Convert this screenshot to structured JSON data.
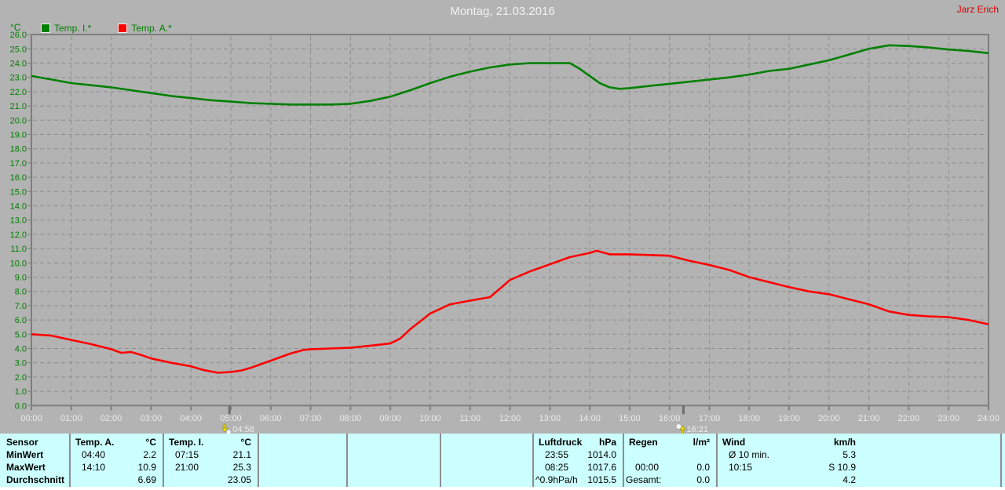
{
  "meta": {
    "title": "Montag, 21.03.2016",
    "user": "Jarz Erich"
  },
  "legend": {
    "unit": "°C",
    "items": [
      {
        "label": "Temp. I.*",
        "color": "#008000"
      },
      {
        "label": "Temp. A.*",
        "color": "#ff0000"
      }
    ]
  },
  "chart_data": {
    "type": "line",
    "title": "Montag, 21.03.2016",
    "xlabel": "",
    "ylabel": "°C",
    "ylim": [
      0,
      26
    ],
    "y_tick_step": 1,
    "grid": true,
    "legend_position": "top-left",
    "x_ticks": [
      "00:00",
      "01:00",
      "02:00",
      "03:00",
      "04:00",
      "05:00",
      "06:00",
      "07:00",
      "08:00",
      "09:00",
      "10:00",
      "11:00",
      "12:00",
      "13:00",
      "14:00",
      "15:00",
      "16:00",
      "17:00",
      "18:00",
      "19:00",
      "20:00",
      "21:00",
      "22:00",
      "23:00",
      "24:00"
    ],
    "series": [
      {
        "name": "Temp. I.*",
        "color": "#008000",
        "points": [
          [
            0,
            23.1
          ],
          [
            0.5,
            22.85
          ],
          [
            1,
            22.6
          ],
          [
            1.5,
            22.45
          ],
          [
            2,
            22.3
          ],
          [
            2.5,
            22.1
          ],
          [
            3,
            21.9
          ],
          [
            3.5,
            21.7
          ],
          [
            4,
            21.55
          ],
          [
            4.5,
            21.4
          ],
          [
            5,
            21.3
          ],
          [
            5.5,
            21.2
          ],
          [
            6,
            21.15
          ],
          [
            6.5,
            21.1
          ],
          [
            7,
            21.1
          ],
          [
            7.5,
            21.1
          ],
          [
            8,
            21.15
          ],
          [
            8.5,
            21.35
          ],
          [
            9,
            21.65
          ],
          [
            9.5,
            22.1
          ],
          [
            10,
            22.6
          ],
          [
            10.5,
            23.05
          ],
          [
            11,
            23.4
          ],
          [
            11.5,
            23.7
          ],
          [
            12,
            23.9
          ],
          [
            12.5,
            24.0
          ],
          [
            13,
            24.0
          ],
          [
            13.5,
            24.0
          ],
          [
            13.75,
            23.6
          ],
          [
            14,
            23.1
          ],
          [
            14.25,
            22.6
          ],
          [
            14.5,
            22.3
          ],
          [
            14.75,
            22.2
          ],
          [
            15,
            22.25
          ],
          [
            15.5,
            22.4
          ],
          [
            16,
            22.55
          ],
          [
            16.5,
            22.7
          ],
          [
            17,
            22.85
          ],
          [
            17.5,
            23.0
          ],
          [
            18,
            23.2
          ],
          [
            18.5,
            23.45
          ],
          [
            19,
            23.6
          ],
          [
            19.5,
            23.9
          ],
          [
            20,
            24.2
          ],
          [
            20.5,
            24.6
          ],
          [
            21,
            25.0
          ],
          [
            21.5,
            25.25
          ],
          [
            22,
            25.2
          ],
          [
            22.5,
            25.1
          ],
          [
            23,
            24.95
          ],
          [
            23.5,
            24.85
          ],
          [
            24,
            24.7
          ]
        ]
      },
      {
        "name": "Temp. A.*",
        "color": "#ff0000",
        "points": [
          [
            0,
            5.0
          ],
          [
            0.5,
            4.9
          ],
          [
            1,
            4.6
          ],
          [
            1.5,
            4.3
          ],
          [
            2,
            3.95
          ],
          [
            2.25,
            3.7
          ],
          [
            2.5,
            3.75
          ],
          [
            2.75,
            3.55
          ],
          [
            3,
            3.3
          ],
          [
            3.5,
            3.0
          ],
          [
            4,
            2.75
          ],
          [
            4.3,
            2.5
          ],
          [
            4.67,
            2.3
          ],
          [
            5,
            2.35
          ],
          [
            5.25,
            2.45
          ],
          [
            5.5,
            2.65
          ],
          [
            6,
            3.15
          ],
          [
            6.5,
            3.65
          ],
          [
            6.83,
            3.9
          ],
          [
            7,
            3.95
          ],
          [
            7.5,
            4.0
          ],
          [
            8,
            4.05
          ],
          [
            8.5,
            4.2
          ],
          [
            9,
            4.35
          ],
          [
            9.25,
            4.7
          ],
          [
            9.5,
            5.35
          ],
          [
            10,
            6.45
          ],
          [
            10.5,
            7.1
          ],
          [
            11,
            7.35
          ],
          [
            11.5,
            7.6
          ],
          [
            11.75,
            8.2
          ],
          [
            12,
            8.8
          ],
          [
            12.5,
            9.4
          ],
          [
            13,
            9.9
          ],
          [
            13.5,
            10.4
          ],
          [
            14,
            10.7
          ],
          [
            14.17,
            10.85
          ],
          [
            14.5,
            10.6
          ],
          [
            15,
            10.6
          ],
          [
            15.5,
            10.55
          ],
          [
            16,
            10.5
          ],
          [
            16.5,
            10.15
          ],
          [
            17,
            9.85
          ],
          [
            17.5,
            9.5
          ],
          [
            18,
            9.0
          ],
          [
            18.5,
            8.65
          ],
          [
            19,
            8.3
          ],
          [
            19.5,
            8.0
          ],
          [
            20,
            7.8
          ],
          [
            20.5,
            7.45
          ],
          [
            21,
            7.1
          ],
          [
            21.5,
            6.6
          ],
          [
            22,
            6.35
          ],
          [
            22.5,
            6.25
          ],
          [
            23,
            6.2
          ],
          [
            23.5,
            6.0
          ],
          [
            24,
            5.7
          ]
        ]
      }
    ],
    "markers": [
      {
        "time": "04:58",
        "hour": 4.967,
        "icon": "moonset"
      },
      {
        "time": "16:21",
        "hour": 16.35,
        "icon": "moonrise"
      }
    ]
  },
  "table": {
    "row_labels": [
      "Sensor",
      "MinWert",
      "MaxWert",
      "Durchschnitt"
    ],
    "columns": [
      {
        "header": "Temp. A.",
        "unit": "°C",
        "rows": [
          [
            "04:40",
            "2.2"
          ],
          [
            "14:10",
            "10.9"
          ],
          [
            "",
            "6.69"
          ]
        ]
      },
      {
        "header": "Temp. I.",
        "unit": "°C",
        "rows": [
          [
            "07:15",
            "21.1"
          ],
          [
            "21:00",
            "25.3"
          ],
          [
            "",
            "23.05"
          ]
        ]
      },
      {
        "header": "",
        "unit": "",
        "rows": [
          [
            "",
            ""
          ],
          [
            "",
            ""
          ],
          [
            "",
            ""
          ]
        ]
      },
      {
        "header": "",
        "unit": "",
        "rows": [
          [
            "",
            ""
          ],
          [
            "",
            ""
          ],
          [
            "",
            ""
          ]
        ]
      },
      {
        "header": "",
        "unit": "",
        "rows": [
          [
            "",
            ""
          ],
          [
            "",
            ""
          ],
          [
            "",
            ""
          ]
        ]
      },
      {
        "header": "Luftdruck",
        "unit": "hPa",
        "rows": [
          [
            "23:55",
            "1014.0"
          ],
          [
            "08:25",
            "1017.6"
          ],
          [
            "^0.9hPa/h",
            "1015.5"
          ]
        ]
      },
      {
        "header": "Regen",
        "unit": "l/m²",
        "rows": [
          [
            "",
            ""
          ],
          [
            "00:00",
            "0.0"
          ],
          [
            "Gesamt:",
            "0.0"
          ]
        ]
      },
      {
        "header": "Wind",
        "unit": "km/h",
        "rows": [
          [
            "Ø 10 min.",
            "5.3"
          ],
          [
            "10:15",
            "S 10.9"
          ],
          [
            "",
            "4.2"
          ]
        ]
      }
    ]
  }
}
